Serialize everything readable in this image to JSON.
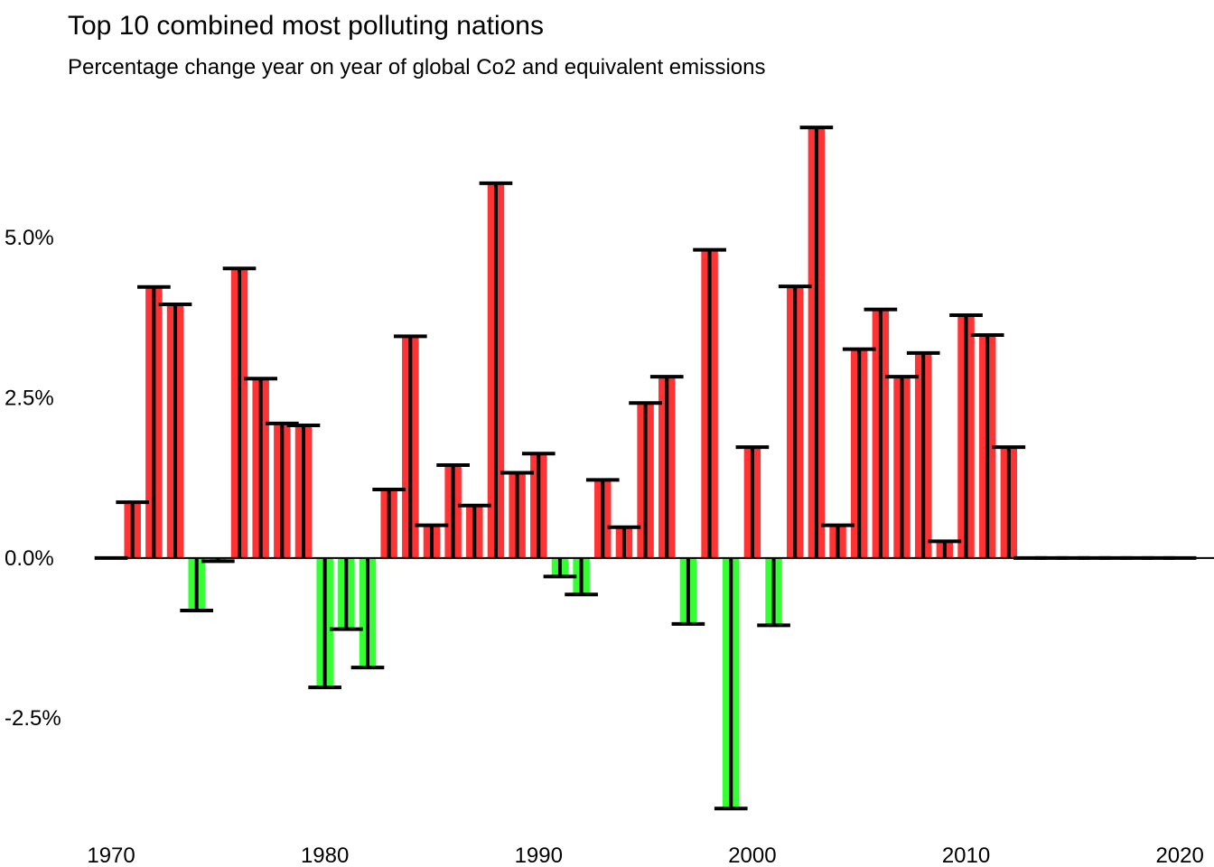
{
  "chart_data": {
    "type": "bar",
    "title": "Top 10 combined most polluting nations",
    "subtitle": "Percentage change year on year of global Co2 and equivalent emissions",
    "xlabel": "",
    "ylabel": "",
    "x_ticks": [
      1970,
      1980,
      1990,
      2000,
      2010,
      2020
    ],
    "y_ticks": [
      {
        "value": -2.5,
        "label": "-2.5%"
      },
      {
        "value": 0.0,
        "label": "0.0%"
      },
      {
        "value": 2.5,
        "label": "2.5%"
      },
      {
        "value": 5.0,
        "label": "5.0%"
      }
    ],
    "xlim": [
      1964.8,
      2021.6
    ],
    "ylim": [
      -4.4,
      7.3
    ],
    "grid": false,
    "legend": "none",
    "colors": {
      "increase": "#FF3333",
      "decrease": "#33FF33",
      "errorbar": "#000000",
      "zero_line": "#000000"
    },
    "x": [
      1970,
      1971,
      1972,
      1973,
      1974,
      1975,
      1976,
      1977,
      1978,
      1979,
      1980,
      1981,
      1982,
      1983,
      1984,
      1985,
      1986,
      1987,
      1988,
      1989,
      1990,
      1991,
      1992,
      1993,
      1994,
      1995,
      1996,
      1997,
      1998,
      1999,
      2000,
      2001,
      2002,
      2003,
      2004,
      2005,
      2006,
      2007,
      2008,
      2009,
      2010,
      2011,
      2012,
      2013,
      2014,
      2015,
      2016,
      2017,
      2018,
      2019,
      2020
    ],
    "values": [
      0.0,
      0.87,
      4.23,
      3.96,
      -0.82,
      -0.05,
      4.52,
      2.8,
      2.1,
      2.07,
      -2.02,
      -1.11,
      -1.71,
      1.07,
      3.46,
      0.51,
      1.45,
      0.82,
      5.85,
      1.33,
      1.63,
      -0.29,
      -0.57,
      1.22,
      0.48,
      2.42,
      2.83,
      -1.03,
      4.81,
      -3.91,
      1.73,
      -1.05,
      4.24,
      6.72,
      0.51,
      3.26,
      3.88,
      2.83,
      3.2,
      0.26,
      3.79,
      3.48,
      1.73,
      0.0,
      0.0,
      0.0,
      0.0,
      0.0,
      0.0,
      0.0,
      0.0
    ]
  }
}
